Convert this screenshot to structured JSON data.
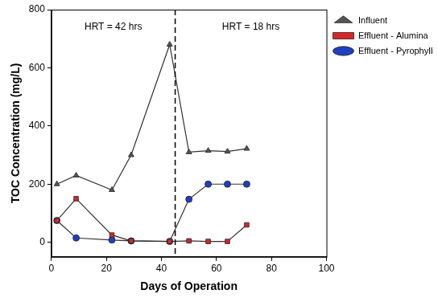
{
  "chart_data": {
    "type": "line",
    "x_label": "Days of Operation",
    "y_label": "TOC Concentration (mg/L)",
    "annotations": [
      "HRT = 42 hrs",
      "HRT = 18 hrs"
    ],
    "vline_x": 45,
    "x": [
      2,
      9,
      22,
      29,
      43,
      50,
      57,
      64,
      71
    ],
    "series": [
      {
        "name": "Influent",
        "color": "#555555",
        "marker": "triangle",
        "values": [
          200,
          230,
          180,
          300,
          680,
          310,
          315,
          312,
          322
        ]
      },
      {
        "name": "Effluent - Alumina",
        "color": "#d62728",
        "marker": "square",
        "values": [
          75,
          150,
          25,
          5,
          3,
          5,
          3,
          3,
          60
        ]
      },
      {
        "name": "Effluent - Pyrophyllite",
        "color": "#1f3fbf",
        "marker": "circle",
        "values": [
          75,
          15,
          8,
          5,
          3,
          148,
          200,
          200,
          200
        ]
      }
    ],
    "xlim": [
      0,
      100
    ],
    "xticks": [
      0,
      20,
      40,
      60,
      80,
      100
    ],
    "ylim": [
      -50,
      800
    ],
    "yticks": [
      0,
      200,
      400,
      600,
      800
    ],
    "grid": false,
    "legend": "right"
  }
}
